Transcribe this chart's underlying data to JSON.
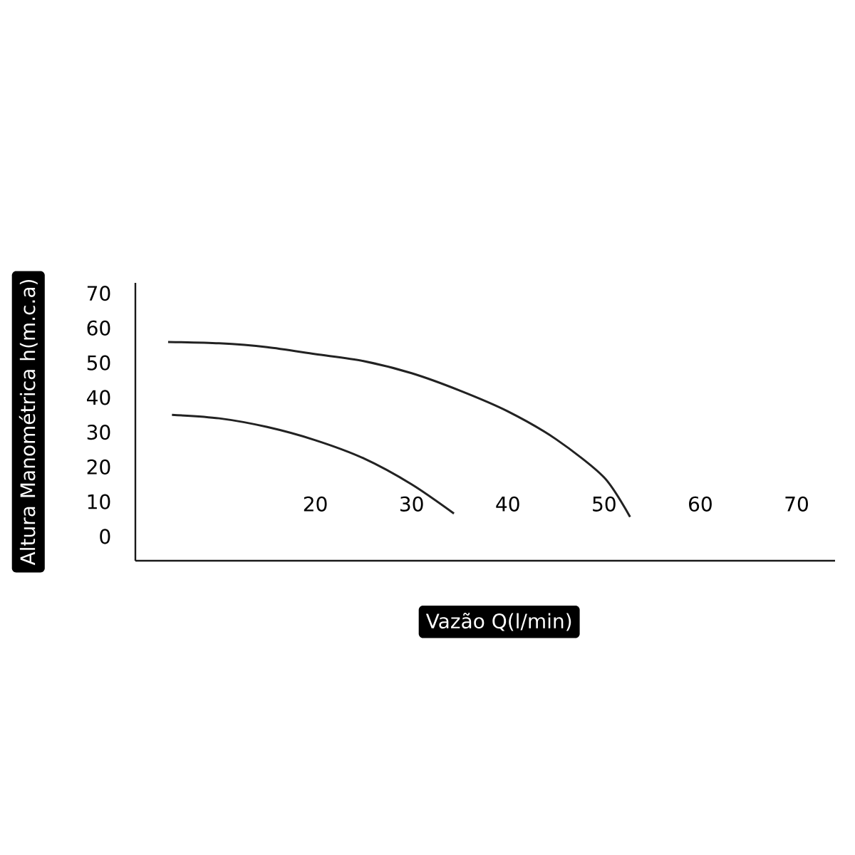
{
  "chart_data": {
    "type": "line",
    "xlabel": "Vazão Q(l/min)",
    "ylabel": "Altura Manométrica h(m.c.a)",
    "xlim": [
      1.3,
      74
    ],
    "ylim": [
      -7,
      73
    ],
    "xticks": [
      20,
      30,
      40,
      50,
      60,
      70
    ],
    "yticks": [
      0,
      10,
      20,
      30,
      40,
      50,
      60,
      70
    ],
    "grid": false,
    "marker": "none",
    "line_style": "solid",
    "series": [
      {
        "color": "#222222",
        "x": [
          4.7,
          10,
          15,
          20,
          25,
          30,
          35,
          40,
          45,
          50,
          52.7
        ],
        "values": [
          56,
          55.6,
          54.5,
          52.5,
          50.5,
          47,
          42,
          36,
          28,
          17,
          5.6
        ]
      },
      {
        "color": "#222222",
        "x": [
          5.1,
          10,
          15,
          20,
          25,
          30,
          34.4
        ],
        "values": [
          35,
          34,
          31.5,
          27.7,
          22.5,
          15,
          6.6
        ]
      }
    ]
  }
}
